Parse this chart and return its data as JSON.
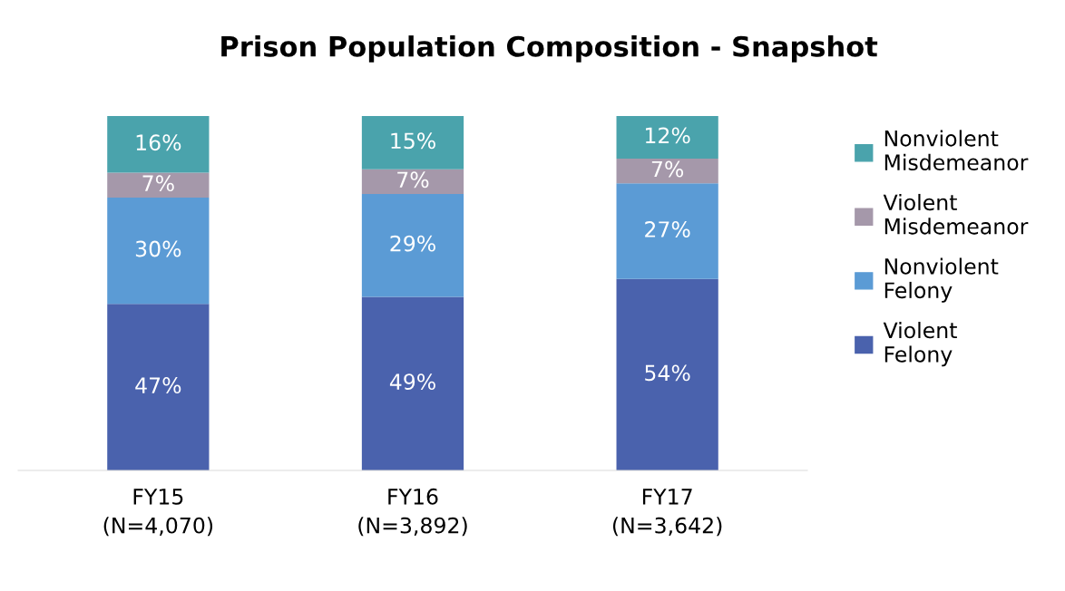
{
  "chart_data": {
    "type": "bar",
    "title": "Prison Population Composition - Snapshot",
    "categories": [
      "FY15\n(N=4,070)",
      "FY16\n(N=3,892)",
      "FY17\n(N=3,642)"
    ],
    "stacked": true,
    "legend": "right",
    "grid": false,
    "series": [
      {
        "name": "Violent\nFelony",
        "color": "#4a62ad",
        "values": [
          47,
          49,
          54
        ],
        "value_labels": [
          "47%",
          "49%",
          "54%"
        ]
      },
      {
        "name": "Nonviolent\nFelony",
        "color": "#5b9bd5",
        "values": [
          30,
          29,
          27
        ],
        "value_labels": [
          "30%",
          "29%",
          "27%"
        ]
      },
      {
        "name": "Violent\nMisdemeanor",
        "color": "#a598aa",
        "values": [
          7,
          7,
          7
        ],
        "value_labels": [
          "7%",
          "7%",
          "7%"
        ]
      },
      {
        "name": "Nonviolent\nMisdemeanor",
        "color": "#4aa3ac",
        "values": [
          16,
          15,
          12
        ],
        "value_labels": [
          "16%",
          "15%",
          "12%"
        ]
      }
    ]
  }
}
